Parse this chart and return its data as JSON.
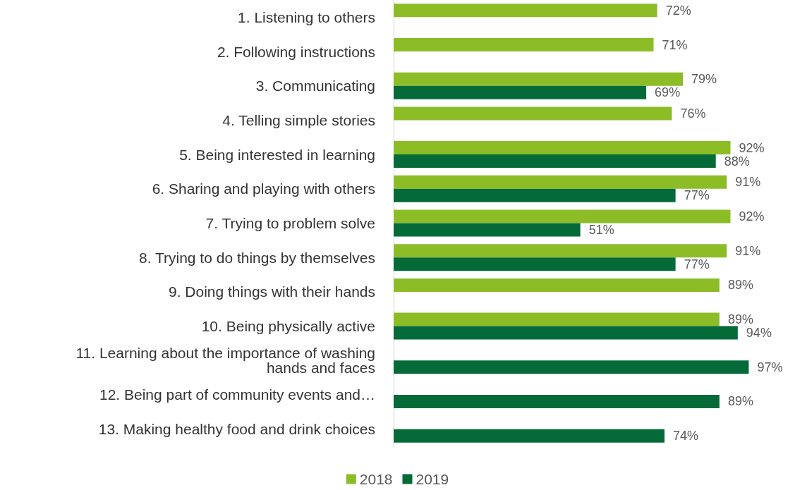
{
  "chart_data": {
    "type": "bar",
    "orientation": "horizontal",
    "categories": [
      "1. Listening to others",
      "2. Following instructions",
      "3. Communicating",
      "4. Telling simple stories",
      "5. Being interested in learning",
      "6. Sharing and playing with others",
      "7. Trying to problem solve",
      "8. Trying to do things by themselves",
      "9. Doing things with their hands",
      "10. Being physically active",
      "11. Learning about the importance of washing\nhands and faces",
      "12. Being part of community events and…",
      "13. Making healthy food and drink choices"
    ],
    "series": [
      {
        "name": "2018",
        "color": "#8cbd27",
        "values": [
          72,
          71,
          79,
          76,
          92,
          91,
          92,
          91,
          89,
          89,
          null,
          null,
          null
        ],
        "value_labels": [
          "72%",
          "71%",
          "79%",
          "76%",
          "92%",
          "91%",
          "92%",
          "91%",
          "89%",
          "89%",
          null,
          null,
          null
        ]
      },
      {
        "name": "2019",
        "color": "#046a38",
        "values": [
          null,
          null,
          69,
          null,
          88,
          77,
          51,
          77,
          null,
          94,
          97,
          89,
          74
        ],
        "value_labels": [
          null,
          null,
          "69%",
          null,
          "88%",
          "77%",
          "51%",
          "77%",
          null,
          "94%",
          "97%",
          "89%",
          "74%"
        ]
      }
    ],
    "grid": false,
    "legend": "bottom"
  }
}
